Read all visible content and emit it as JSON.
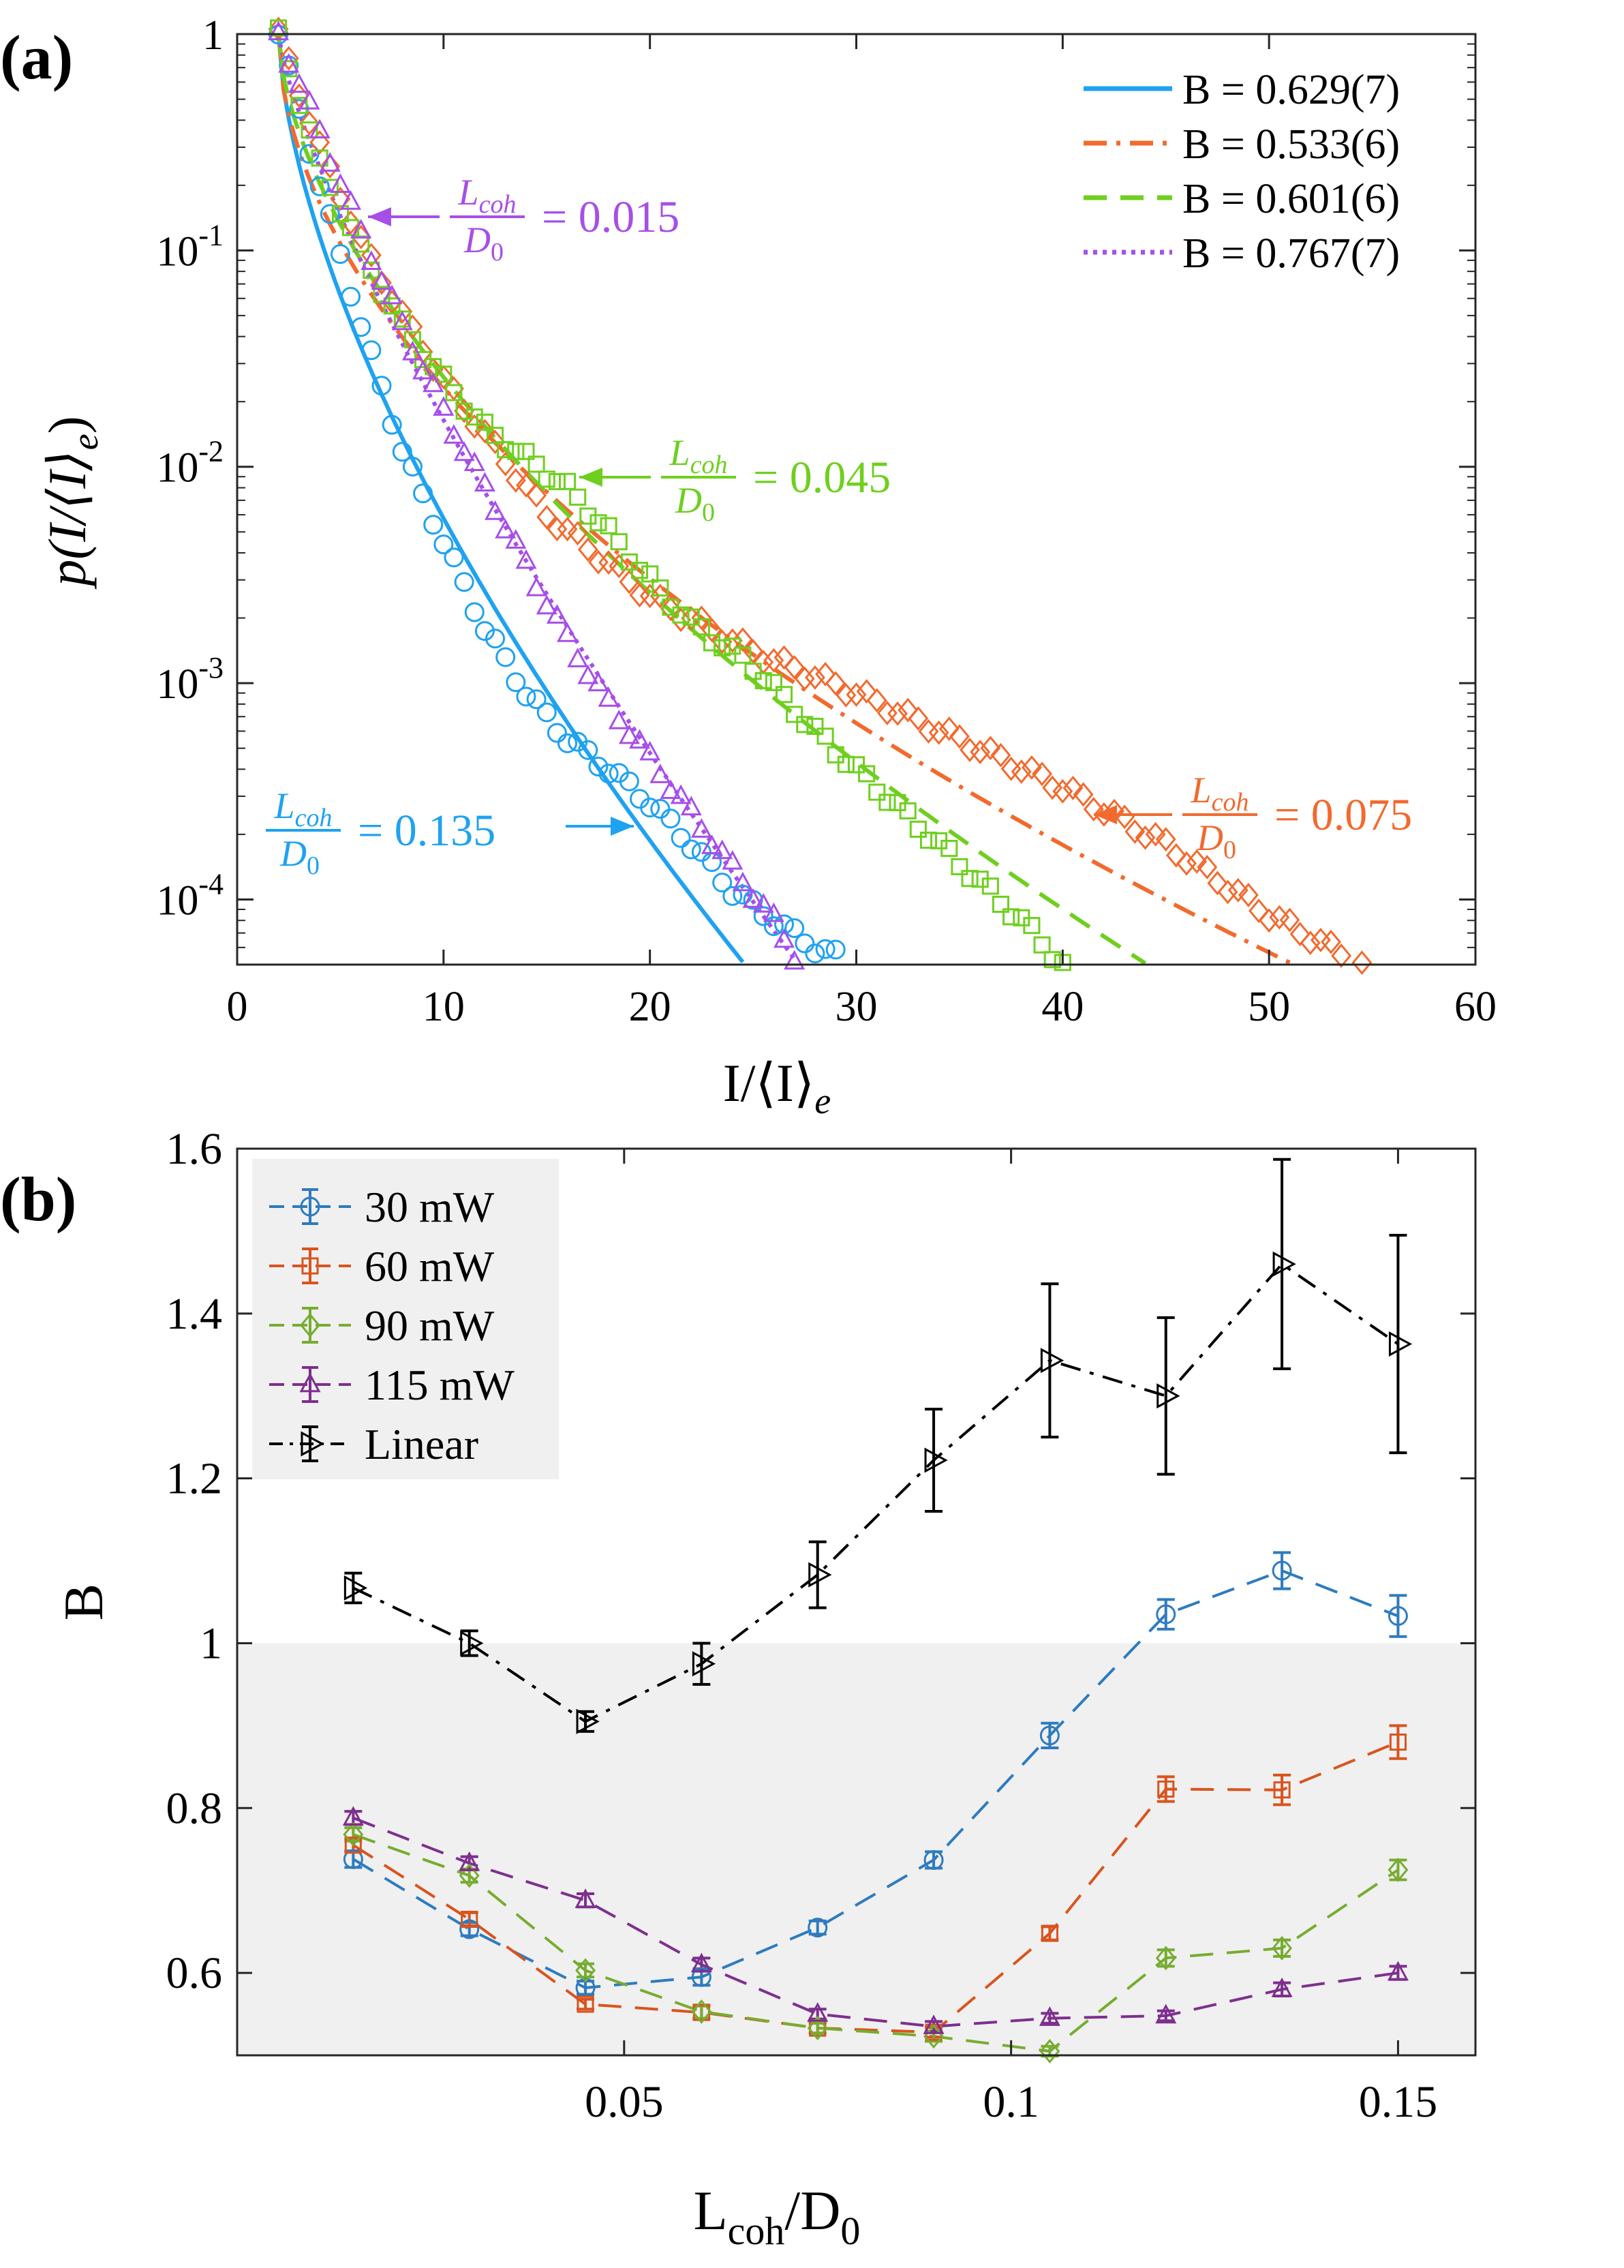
{
  "chart_data": [
    {
      "type": "scatter",
      "panel_label": "(a)",
      "y_scale": "log",
      "xlabel": "I/⟨I⟩",
      "xlabel_sub": "e",
      "ylabel": "p(I/⟨I⟩",
      "ylabel_sub": "e",
      "ylabel_end": ")",
      "xlim": [
        0,
        60
      ],
      "ylim": [
        5e-05,
        1
      ],
      "xticks": [
        "0",
        "10",
        "20",
        "30",
        "40",
        "50",
        "60"
      ],
      "xtick_values": [
        0,
        10,
        20,
        30,
        40,
        50,
        60
      ],
      "yticks": [
        {
          "base": "1",
          "exp": ""
        },
        {
          "base": "10",
          "exp": "-1"
        },
        {
          "base": "10",
          "exp": "-2"
        },
        {
          "base": "10",
          "exp": "-3"
        },
        {
          "base": "10",
          "exp": "-4"
        }
      ],
      "ytick_values": [
        1,
        0.1,
        0.01,
        0.001,
        0.0001
      ],
      "legend": [
        {
          "label": "B = 0.629(7)",
          "color": "#1fa2f0",
          "style": "solid"
        },
        {
          "label": "B = 0.533(6)",
          "color": "#f26a2e",
          "style": "dashdot"
        },
        {
          "label": "B = 0.601(6)",
          "color": "#6fcf1f",
          "style": "dashed"
        },
        {
          "label": "B = 0.767(7)",
          "color": "#a64fe8",
          "style": "dotted"
        }
      ],
      "annotations": [
        {
          "num": "L",
          "num_sub": "coh",
          "den": "D",
          "den_sub": "0",
          "value": "= 0.015",
          "color": "#a64fe8"
        },
        {
          "num": "L",
          "num_sub": "coh",
          "den": "D",
          "den_sub": "0",
          "value": "= 0.045",
          "color": "#6fcf1f"
        },
        {
          "num": "L",
          "num_sub": "coh",
          "den": "D",
          "den_sub": "0",
          "value": "= 0.135",
          "color": "#1fa2f0"
        },
        {
          "num": "L",
          "num_sub": "coh",
          "den": "D",
          "den_sub": "0",
          "value": "= 0.075",
          "color": "#f26a2e"
        }
      ],
      "series": [
        {
          "name": "L_coh/D0 = 0.135",
          "marker": "circle",
          "color": "#1fa2f0",
          "x_range": [
            2,
            29
          ],
          "y_points": [
            [
              2,
              1
            ],
            [
              4,
              0.2
            ],
            [
              6,
              0.045
            ],
            [
              8,
              0.012
            ],
            [
              10,
              0.0045
            ],
            [
              12,
              0.0018
            ],
            [
              14,
              0.0009
            ],
            [
              16,
              0.00055
            ],
            [
              18,
              0.0004
            ],
            [
              20,
              0.00028
            ],
            [
              22,
              0.00018
            ],
            [
              24,
              0.00011
            ],
            [
              26,
              8e-05
            ],
            [
              28,
              6e-05
            ],
            [
              29,
              5.5e-05
            ]
          ],
          "fit_B": 0.629,
          "fit_end_x": 24.6
        },
        {
          "name": "L_coh/D0 = 0.075",
          "marker": "diamond",
          "color": "#f26a2e",
          "x_range": [
            2,
            54.5
          ],
          "y_points": [
            [
              2,
              1
            ],
            [
              4,
              0.3
            ],
            [
              6,
              0.11
            ],
            [
              8,
              0.05
            ],
            [
              10,
              0.025
            ],
            [
              15,
              0.006
            ],
            [
              20,
              0.0025
            ],
            [
              25,
              0.0014
            ],
            [
              30,
              0.0009
            ],
            [
              35,
              0.00055
            ],
            [
              40,
              0.00033
            ],
            [
              45,
              0.00018
            ],
            [
              50,
              8.5e-05
            ],
            [
              54.5,
              5e-05
            ]
          ],
          "fit_B": 0.533,
          "fit_end_x": 51.2
        },
        {
          "name": "L_coh/D0 = 0.045",
          "marker": "square",
          "color": "#6fcf1f",
          "x_range": [
            2,
            40
          ],
          "y_points": [
            [
              2,
              1
            ],
            [
              4,
              0.25
            ],
            [
              6,
              0.1
            ],
            [
              8,
              0.045
            ],
            [
              10,
              0.025
            ],
            [
              12,
              0.015
            ],
            [
              14,
              0.011
            ],
            [
              16,
              0.008
            ],
            [
              18,
              0.005
            ],
            [
              20,
              0.003
            ],
            [
              22,
              0.0019
            ],
            [
              25,
              0.0012
            ],
            [
              28,
              0.0006
            ],
            [
              30,
              0.0004
            ],
            [
              33,
              0.00022
            ],
            [
              36,
              0.00012
            ],
            [
              38,
              8e-05
            ],
            [
              40,
              5e-05
            ]
          ],
          "fit_B": 0.601,
          "fit_end_x": 44.1
        },
        {
          "name": "L_coh/D0 = 0.015",
          "marker": "triangle",
          "color": "#a64fe8",
          "x_range": [
            2,
            27
          ],
          "y_points": [
            [
              2,
              1
            ],
            [
              4,
              0.35
            ],
            [
              6,
              0.12
            ],
            [
              8,
              0.045
            ],
            [
              10,
              0.018
            ],
            [
              12,
              0.008
            ],
            [
              14,
              0.0035
            ],
            [
              16,
              0.0016
            ],
            [
              18,
              0.0008
            ],
            [
              20,
              0.00045
            ],
            [
              22,
              0.00025
            ],
            [
              24,
              0.00014
            ],
            [
              26,
              8e-05
            ],
            [
              27,
              5.5e-05
            ]
          ],
          "fit_B": 0.767,
          "fit_end_x": 27.2
        }
      ]
    },
    {
      "type": "line",
      "panel_label": "(b)",
      "xlabel": "L",
      "xlabel_sub": "coh",
      "xlabel_mid": "/D",
      "xlabel_sub2": "0",
      "ylabel": "B",
      "xlim": [
        0,
        0.16
      ],
      "ylim": [
        0.5,
        1.6
      ],
      "xticks": [
        "0.05",
        "0.1",
        "0.15"
      ],
      "xtick_values": [
        0.05,
        0.1,
        0.15
      ],
      "yticks": [
        "0.6",
        "0.8",
        "1",
        "1.2",
        "1.4",
        "1.6"
      ],
      "ytick_values": [
        0.6,
        0.8,
        1.0,
        1.2,
        1.4,
        1.6
      ],
      "shaded_below": 1.0,
      "x": [
        0.015,
        0.03,
        0.045,
        0.06,
        0.075,
        0.09,
        0.105,
        0.12,
        0.135,
        0.15
      ],
      "series": [
        {
          "name": "30 mW",
          "marker": "circle",
          "color": "#2e7bbf",
          "style": "dashed",
          "values": [
            0.738,
            0.653,
            0.582,
            0.595,
            0.655,
            0.737,
            0.888,
            1.035,
            1.088,
            1.033
          ],
          "errors": [
            0.01,
            0.008,
            0.008,
            0.01,
            0.008,
            0.01,
            0.015,
            0.018,
            0.022,
            0.025
          ]
        },
        {
          "name": "60 mW",
          "marker": "square",
          "color": "#d9541e",
          "style": "dashed",
          "values": [
            0.755,
            0.665,
            0.562,
            0.552,
            0.533,
            0.528,
            0.648,
            0.823,
            0.822,
            0.88
          ],
          "errors": [
            0.008,
            0.008,
            0.006,
            0.008,
            0.006,
            0.006,
            0.008,
            0.015,
            0.018,
            0.02
          ]
        },
        {
          "name": "90 mW",
          "marker": "diamond",
          "color": "#77ac30",
          "style": "dashed",
          "values": [
            0.768,
            0.718,
            0.603,
            0.553,
            0.533,
            0.523,
            0.505,
            0.618,
            0.63,
            0.725
          ],
          "errors": [
            0.008,
            0.008,
            0.008,
            0.008,
            0.006,
            0.006,
            0.006,
            0.01,
            0.01,
            0.012
          ]
        },
        {
          "name": "115 mW",
          "marker": "triangle",
          "color": "#7e2f8e",
          "style": "dashed",
          "values": [
            0.788,
            0.733,
            0.688,
            0.61,
            0.55,
            0.535,
            0.545,
            0.548,
            0.58,
            0.6
          ],
          "errors": [
            0.008,
            0.008,
            0.008,
            0.008,
            0.006,
            0.006,
            0.006,
            0.006,
            0.008,
            0.008
          ]
        },
        {
          "name": "Linear",
          "marker": "triangle-right",
          "color": "#000000",
          "style": "dashdot",
          "values": [
            1.067,
            1.0,
            0.905,
            0.975,
            1.083,
            1.222,
            1.343,
            1.3,
            1.46,
            1.363
          ],
          "errors": [
            0.018,
            0.015,
            0.012,
            0.025,
            0.04,
            0.062,
            0.093,
            0.095,
            0.127,
            0.132
          ]
        }
      ]
    }
  ]
}
